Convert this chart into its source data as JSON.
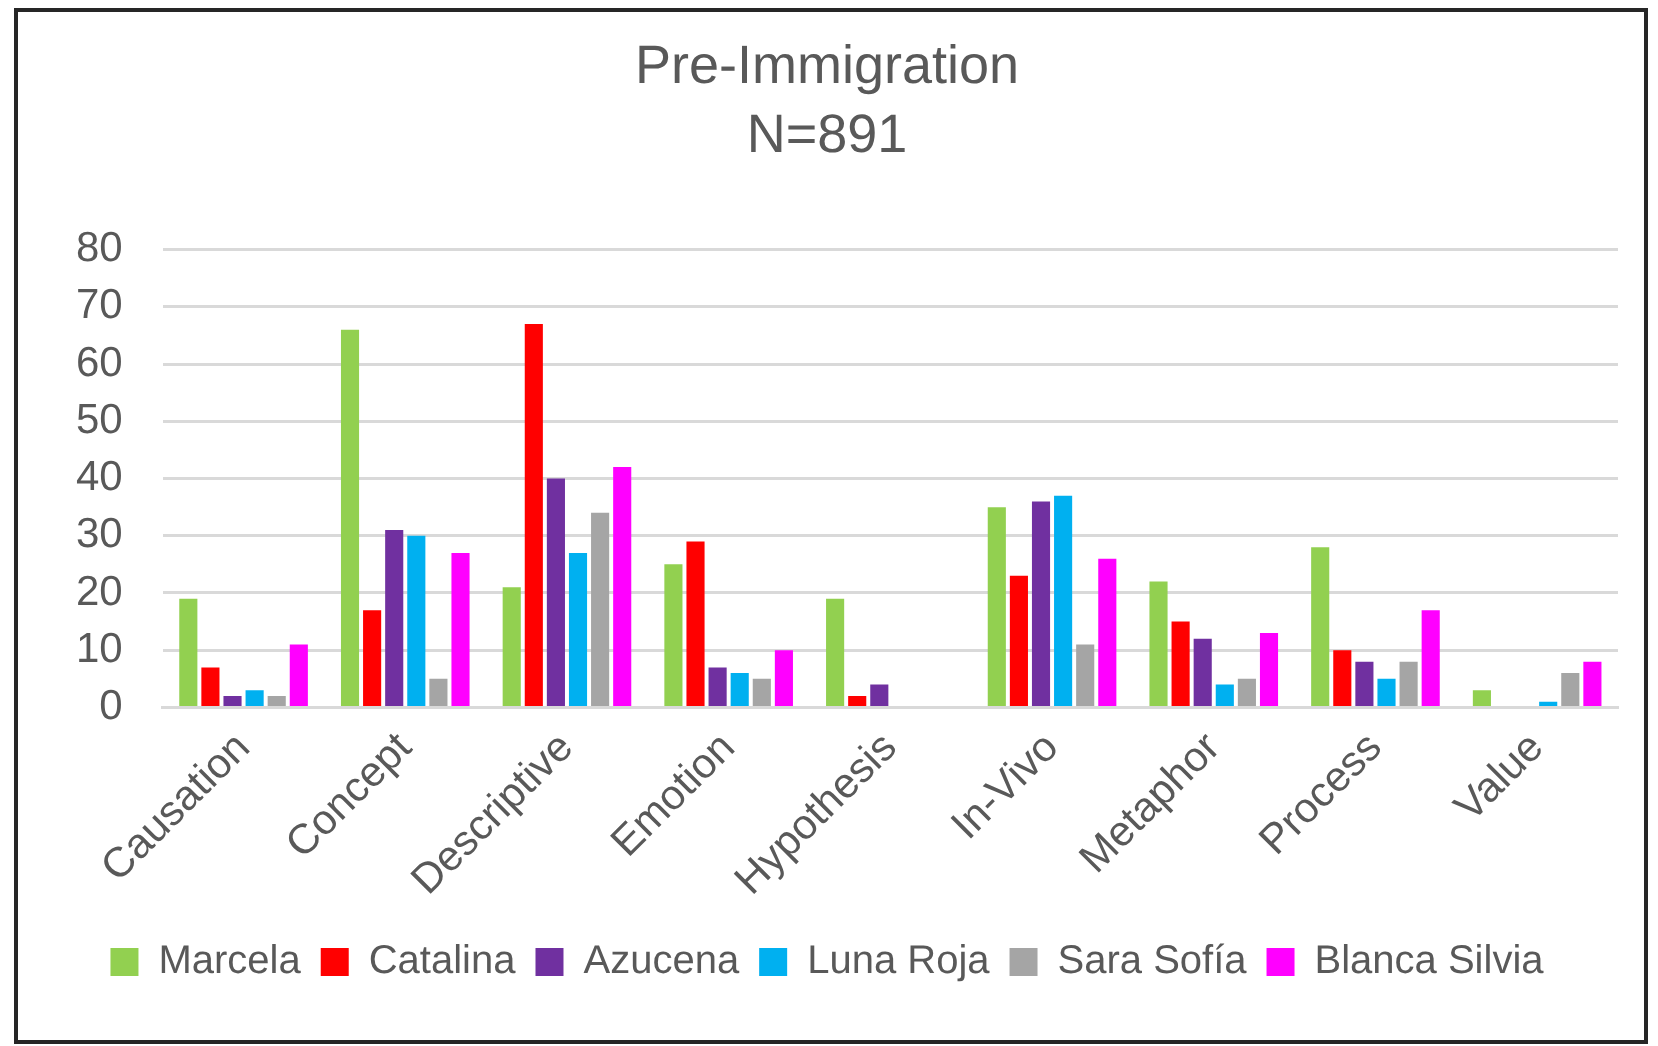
{
  "chart_data": {
    "type": "bar",
    "title": "Pre-Immigration",
    "subtitle": "N=891",
    "categories": [
      "Causation",
      "Concept",
      "Descriptive",
      "Emotion",
      "Hypothesis",
      "In-Vivo",
      "Metaphor",
      "Process",
      "Value"
    ],
    "series": [
      {
        "name": "Marcela",
        "color": "#92d050",
        "values": [
          19,
          66,
          21,
          25,
          19,
          35,
          22,
          28,
          3
        ]
      },
      {
        "name": "Catalina",
        "color": "#ff0000",
        "values": [
          7,
          17,
          67,
          29,
          2,
          23,
          15,
          10,
          0
        ]
      },
      {
        "name": "Azucena",
        "color": "#7030a0",
        "values": [
          2,
          31,
          40,
          7,
          4,
          36,
          12,
          8,
          0
        ]
      },
      {
        "name": "Luna Roja",
        "color": "#00b0f0",
        "values": [
          3,
          30,
          27,
          6,
          0,
          37,
          4,
          5,
          1
        ]
      },
      {
        "name": "Sara Sofía",
        "color": "#a5a5a5",
        "values": [
          2,
          5,
          34,
          5,
          0,
          11,
          5,
          8,
          6
        ]
      },
      {
        "name": "Blanca Silvia",
        "color": "#ff00ff",
        "values": [
          11,
          27,
          42,
          10,
          0,
          26,
          13,
          17,
          8
        ]
      }
    ],
    "ylim": [
      0,
      80
    ],
    "yticks": [
      0,
      10,
      20,
      30,
      40,
      50,
      60,
      70,
      80
    ],
    "grid": "y",
    "legend": "bottom"
  }
}
